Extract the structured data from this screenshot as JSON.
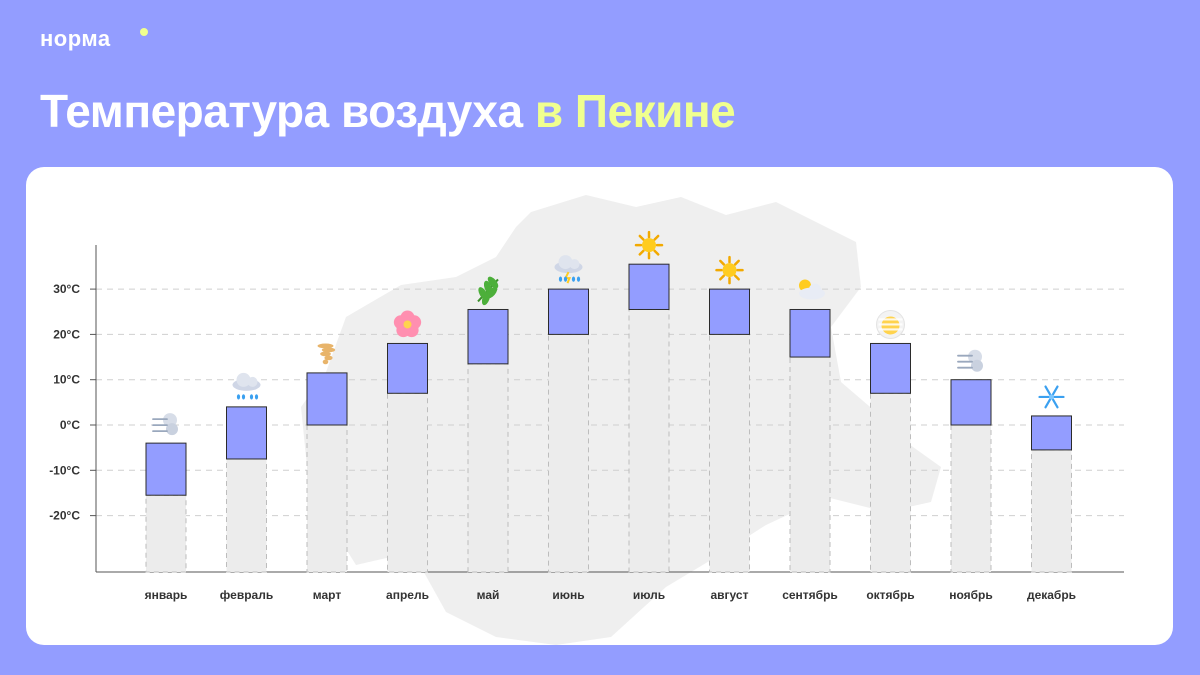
{
  "brand": {
    "name": "норма"
  },
  "header": {
    "title_main": "Температура воздуха ",
    "title_accent": "в Пекине"
  },
  "colors": {
    "background": "#939dff",
    "bar_upper": "#939dff",
    "bar_lower": "#ececec",
    "accent": "#f0ff8f"
  },
  "chart_data": {
    "type": "bar",
    "title": "Температура воздуха в Пекине",
    "ylabel": "",
    "xlabel": "",
    "ylim": [
      -33,
      40
    ],
    "grid": true,
    "y_ticks": [
      {
        "value": 30,
        "label": "30°C"
      },
      {
        "value": 20,
        "label": "20°C"
      },
      {
        "value": 10,
        "label": "10°C"
      },
      {
        "value": 0,
        "label": "0°C"
      },
      {
        "value": -10,
        "label": "-10°C"
      },
      {
        "value": -20,
        "label": "-20°C"
      }
    ],
    "categories": [
      "январь",
      "февраль",
      "март",
      "апрель",
      "май",
      "июнь",
      "июль",
      "август",
      "сентябрь",
      "октябрь",
      "ноябрь",
      "декабрь"
    ],
    "series": [
      {
        "values_low": [
          -15.5,
          -7.5,
          0,
          7,
          13.5,
          20,
          25.5,
          20,
          15,
          7,
          0,
          -5.5
        ]
      },
      {
        "values_high": [
          -4,
          4,
          11.5,
          18,
          25.5,
          30,
          35.5,
          30,
          25.5,
          18,
          10,
          2
        ]
      }
    ],
    "icons": [
      "wind-icon",
      "rain-cloud-icon",
      "tornado-icon",
      "flower-icon",
      "leaf-icon",
      "thunderstorm-icon",
      "sun-icon",
      "sun-icon",
      "sun-behind-cloud-icon",
      "fog-icon",
      "wind-icon",
      "snowflake-icon"
    ]
  }
}
